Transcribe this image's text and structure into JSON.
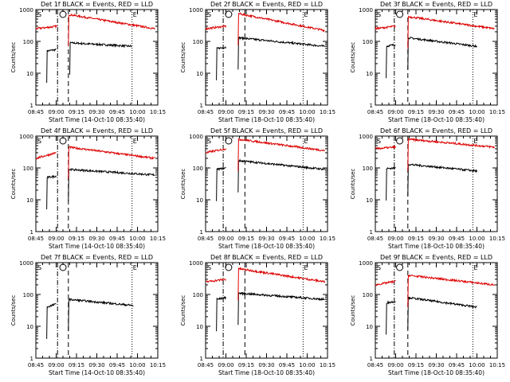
{
  "colors": {
    "events": "#000000",
    "lld": "#dd0000",
    "axis": "#000000",
    "background": "#ffffff"
  },
  "common": {
    "ylabel": "Counts/sec",
    "xlabel_prefix": "Start Time (",
    "xlabel_suffix": ")",
    "x_ticks": [
      "08:45",
      "09:00",
      "09:15",
      "09:30",
      "09:45",
      "10:00",
      "10:15"
    ],
    "y_ticks": [
      "1",
      "10",
      "100",
      "1000"
    ],
    "marker_S": "S",
    "marker_E": "E",
    "y_scale": "log",
    "ylim": [
      1,
      1000
    ],
    "xlim_minutes": [
      0,
      90
    ]
  },
  "chart_data": [
    {
      "type": "line",
      "title": "Det 1f BLACK = Events, RED = LLD",
      "start_time": "14-Oct-10 08:35:40",
      "series": [
        {
          "name": "Events",
          "color": "#000000",
          "segments": [
            {
              "x": [
                8,
                15
              ],
              "y": [
                50,
                55
              ]
            },
            {
              "x": [
                25,
                71
              ],
              "y": [
                90,
                70
              ]
            }
          ]
        },
        {
          "name": "LLD",
          "color": "#dd0000",
          "segments": [
            {
              "x": [
                0,
                16
              ],
              "y": [
                250,
                300
              ]
            },
            {
              "x": [
                24,
                88
              ],
              "y": [
                700,
                250
              ]
            }
          ]
        }
      ],
      "verticals": [
        {
          "x": 16,
          "style": "dashdot"
        },
        {
          "x": 24,
          "style": "dash"
        },
        {
          "x": 71,
          "style": "dot"
        }
      ]
    },
    {
      "type": "line",
      "title": "Det 2f BLACK = Events, RED = LLD",
      "start_time": "18-Oct-10 08:35:40",
      "series": [
        {
          "name": "Events",
          "color": "#000000",
          "segments": [
            {
              "x": [
                8,
                15
              ],
              "y": [
                60,
                65
              ]
            },
            {
              "x": [
                24,
                88
              ],
              "y": [
                130,
                70
              ]
            }
          ]
        },
        {
          "name": "LLD",
          "color": "#dd0000",
          "segments": [
            {
              "x": [
                0,
                15
              ],
              "y": [
                250,
                300
              ]
            },
            {
              "x": [
                24,
                88
              ],
              "y": [
                750,
                220
              ]
            }
          ]
        }
      ],
      "verticals": [
        {
          "x": 13,
          "style": "dashdot"
        },
        {
          "x": 29,
          "style": "dash"
        },
        {
          "x": 72,
          "style": "dot"
        }
      ]
    },
    {
      "type": "line",
      "title": "Det 3f BLACK = Events, RED = LLD",
      "start_time": "18-Oct-10 08:35:40",
      "series": [
        {
          "name": "Events",
          "color": "#000000",
          "segments": [
            {
              "x": [
                8,
                15
              ],
              "y": [
                70,
                80
              ]
            },
            {
              "x": [
                24,
                75
              ],
              "y": [
                130,
                70
              ]
            }
          ]
        },
        {
          "name": "LLD",
          "color": "#dd0000",
          "segments": [
            {
              "x": [
                0,
                15
              ],
              "y": [
                250,
                300
              ]
            },
            {
              "x": [
                24,
                88
              ],
              "y": [
                600,
                250
              ]
            }
          ]
        }
      ],
      "verticals": [
        {
          "x": 14,
          "style": "dashdot"
        },
        {
          "x": 24,
          "style": "dash"
        },
        {
          "x": 72,
          "style": "dot"
        }
      ]
    },
    {
      "type": "line",
      "title": "Det 4f BLACK = Events, RED = LLD",
      "start_time": "14-Oct-10 08:35:40",
      "series": [
        {
          "name": "Events",
          "color": "#000000",
          "segments": [
            {
              "x": [
                8,
                15
              ],
              "y": [
                50,
                55
              ]
            },
            {
              "x": [
                24,
                88
              ],
              "y": [
                90,
                60
              ]
            }
          ]
        },
        {
          "name": "LLD",
          "color": "#dd0000",
          "segments": [
            {
              "x": [
                0,
                15
              ],
              "y": [
                200,
                300
              ]
            },
            {
              "x": [
                24,
                88
              ],
              "y": [
                450,
                200
              ]
            }
          ]
        }
      ],
      "verticals": [
        {
          "x": 16,
          "style": "dashdot"
        },
        {
          "x": 24,
          "style": "dash"
        },
        {
          "x": 71,
          "style": "dot"
        }
      ]
    },
    {
      "type": "line",
      "title": "Det 5f BLACK = Events, RED = LLD",
      "start_time": "18-Oct-10 08:35:40",
      "series": [
        {
          "name": "Events",
          "color": "#000000",
          "segments": [
            {
              "x": [
                8,
                15
              ],
              "y": [
                90,
                100
              ]
            },
            {
              "x": [
                24,
                88
              ],
              "y": [
                170,
                90
              ]
            }
          ]
        },
        {
          "name": "LLD",
          "color": "#dd0000",
          "segments": [
            {
              "x": [
                0,
                15
              ],
              "y": [
                300,
                400
              ]
            },
            {
              "x": [
                24,
                88
              ],
              "y": [
                800,
                350
              ]
            }
          ]
        }
      ],
      "verticals": [
        {
          "x": 13,
          "style": "dashdot"
        },
        {
          "x": 29,
          "style": "dash"
        },
        {
          "x": 72,
          "style": "dot"
        }
      ]
    },
    {
      "type": "line",
      "title": "Det 6f BLACK = Events, RED = LLD",
      "start_time": "18-Oct-10 08:35:40",
      "series": [
        {
          "name": "Events",
          "color": "#000000",
          "segments": [
            {
              "x": [
                8,
                15
              ],
              "y": [
                95,
                100
              ]
            },
            {
              "x": [
                24,
                75
              ],
              "y": [
                130,
                80
              ]
            }
          ]
        },
        {
          "name": "LLD",
          "color": "#dd0000",
          "segments": [
            {
              "x": [
                0,
                15
              ],
              "y": [
                400,
                450
              ]
            },
            {
              "x": [
                24,
                88
              ],
              "y": [
                800,
                450
              ]
            }
          ]
        }
      ],
      "verticals": [
        {
          "x": 14,
          "style": "dashdot"
        },
        {
          "x": 24,
          "style": "dash"
        },
        {
          "x": 72,
          "style": "dot"
        }
      ]
    },
    {
      "type": "line",
      "title": "Det 7f BLACK = Events, RED = LLD",
      "start_time": "14-Oct-10 08:35:40",
      "series": [
        {
          "name": "Events",
          "color": "#000000",
          "segments": [
            {
              "x": [
                8,
                15
              ],
              "y": [
                40,
                50
              ]
            },
            {
              "x": [
                24,
                72
              ],
              "y": [
                70,
                45
              ]
            }
          ]
        }
      ],
      "verticals": [
        {
          "x": 16,
          "style": "dashdot"
        },
        {
          "x": 24,
          "style": "dash"
        },
        {
          "x": 71,
          "style": "dot"
        }
      ]
    },
    {
      "type": "line",
      "title": "Det 8f BLACK = Events, RED = LLD",
      "start_time": "18-Oct-10 08:35:40",
      "series": [
        {
          "name": "Events",
          "color": "#000000",
          "segments": [
            {
              "x": [
                8,
                15
              ],
              "y": [
                70,
                80
              ]
            },
            {
              "x": [
                24,
                88
              ],
              "y": [
                110,
                70
              ]
            }
          ]
        },
        {
          "name": "LLD",
          "color": "#dd0000",
          "segments": [
            {
              "x": [
                0,
                15
              ],
              "y": [
                250,
                300
              ]
            },
            {
              "x": [
                24,
                88
              ],
              "y": [
                650,
                250
              ]
            }
          ]
        }
      ],
      "verticals": [
        {
          "x": 13,
          "style": "dashdot"
        },
        {
          "x": 29,
          "style": "dash"
        },
        {
          "x": 72,
          "style": "dot"
        }
      ]
    },
    {
      "type": "line",
      "title": "Det 9f BLACK = Events, RED = LLD",
      "start_time": "18-Oct-10 08:35:40",
      "series": [
        {
          "name": "Events",
          "color": "#000000",
          "segments": [
            {
              "x": [
                8,
                15
              ],
              "y": [
                55,
                60
              ]
            },
            {
              "x": [
                24,
                75
              ],
              "y": [
                80,
                40
              ]
            }
          ]
        },
        {
          "name": "LLD",
          "color": "#dd0000",
          "segments": [
            {
              "x": [
                0,
                15
              ],
              "y": [
                200,
                260
              ]
            },
            {
              "x": [
                24,
                88
              ],
              "y": [
                400,
                200
              ]
            }
          ]
        }
      ],
      "verticals": [
        {
          "x": 14,
          "style": "dashdot"
        },
        {
          "x": 24,
          "style": "dash"
        },
        {
          "x": 72,
          "style": "dot"
        }
      ]
    }
  ]
}
